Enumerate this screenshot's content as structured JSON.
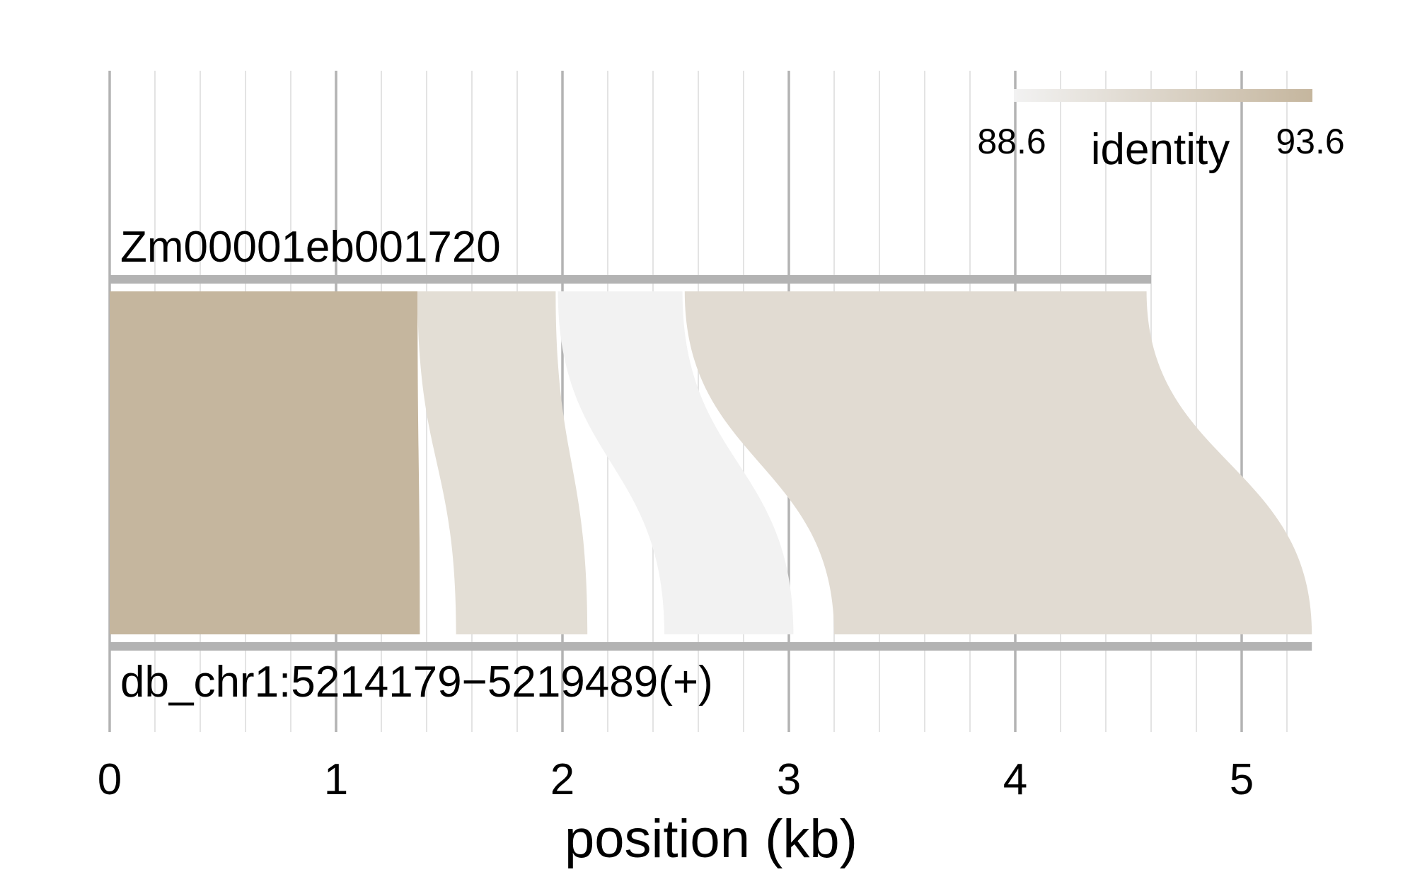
{
  "chart_data": {
    "type": "synteny",
    "xlabel": "position (kb)",
    "x_ticks": [
      0,
      1,
      2,
      3,
      4,
      5
    ],
    "x_minor_ticks": [
      0.2,
      0.4,
      0.6,
      0.8,
      1.2,
      1.4,
      1.6,
      1.8,
      2.2,
      2.4,
      2.6,
      2.8,
      3.2,
      3.4,
      3.6,
      3.8,
      4.2,
      4.4,
      4.6,
      4.8,
      5.2
    ],
    "xlim": [
      0,
      5.31
    ],
    "grid": true,
    "sequences": {
      "top": {
        "name": "Zm00001eb001720",
        "length": 4.6
      },
      "bottom": {
        "name": "db_chr1:5214179−5219489(+)",
        "length": 5.31
      }
    },
    "alignments": [
      {
        "top": [
          0.0,
          1.36
        ],
        "bottom": [
          0.0,
          1.37
        ],
        "identity": 93.6
      },
      {
        "top": [
          1.36,
          1.97
        ],
        "bottom": [
          1.53,
          2.11
        ],
        "identity": 90.3
      },
      {
        "top": [
          1.98,
          2.53
        ],
        "bottom": [
          2.45,
          3.02
        ],
        "identity": 88.6
      },
      {
        "top": [
          2.54,
          4.58
        ],
        "bottom": [
          3.2,
          5.31
        ],
        "identity": 90.5
      }
    ],
    "legend": {
      "title": "identity",
      "min_label": "88.6",
      "max_label": "93.6",
      "min": 88.6,
      "max": 93.6,
      "color_low": "#f2f2f2",
      "color_high": "#c5b69e",
      "placement": "top-right"
    }
  }
}
